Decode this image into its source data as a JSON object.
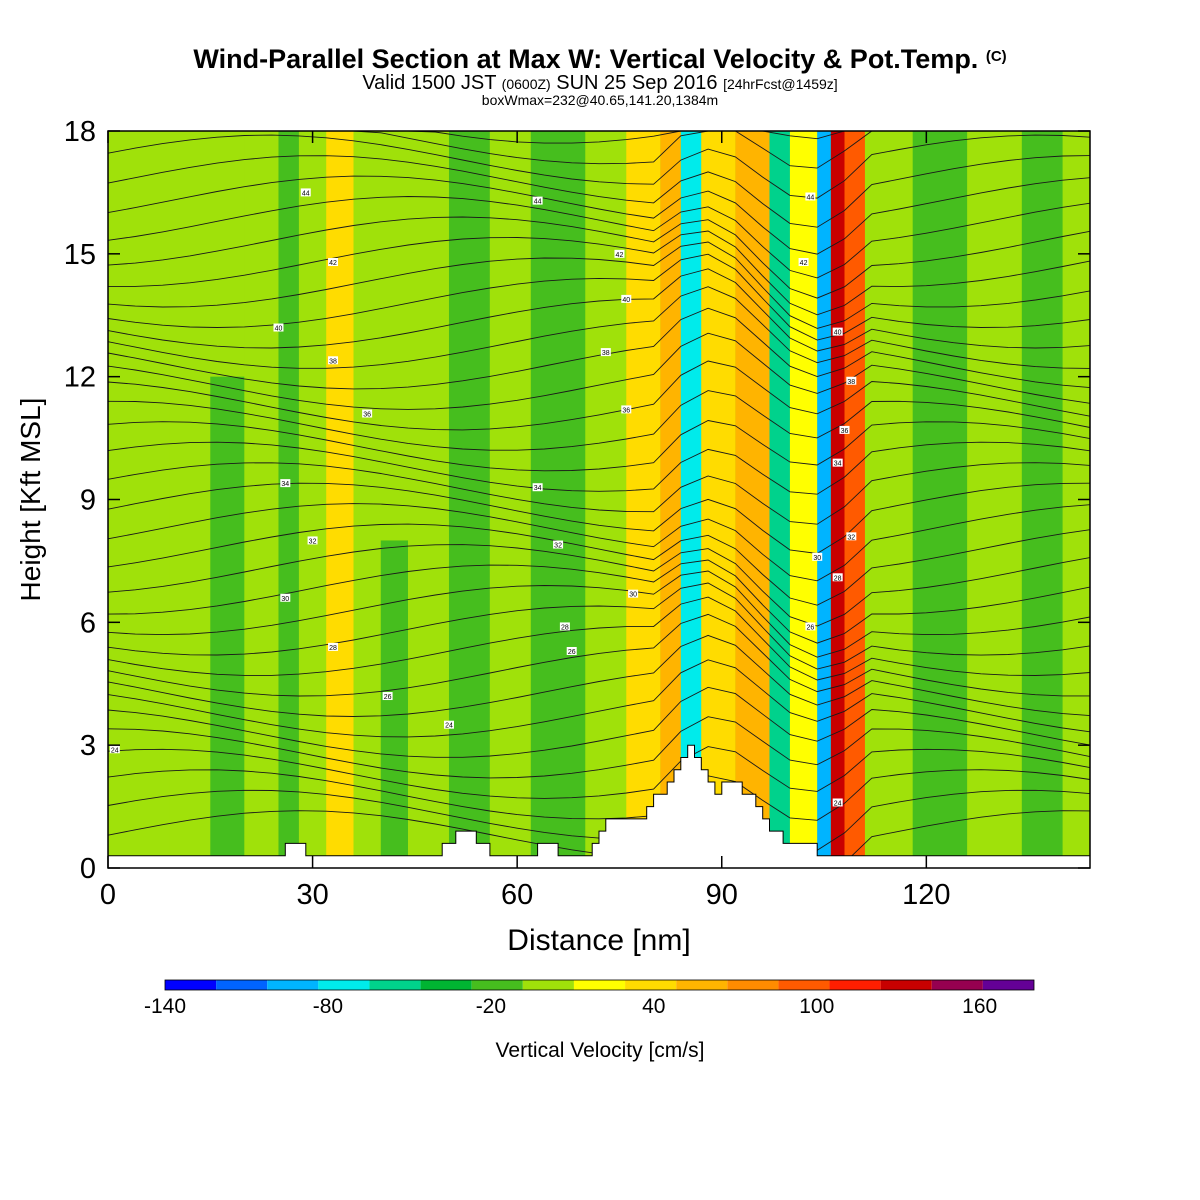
{
  "titles": {
    "main": "Wind-Parallel Section at Max W: Vertical Velocity & Pot.Temp.",
    "main_suffix": "(C)",
    "valid_a": "Valid 1500 JST",
    "valid_b": "(0600Z)",
    "valid_c": "SUN 25 Sep 2016",
    "valid_d": "[24hrFcst@1459z]",
    "box": "boxWmax=232@40.65,141.20,1384m"
  },
  "chart_data": {
    "type": "heatmap",
    "xlabel": "Distance [nm]",
    "ylabel": "Height [Kft MSL]",
    "xlim": [
      0,
      144
    ],
    "ylim": [
      0,
      18
    ],
    "x_ticks": [
      0,
      30,
      60,
      90,
      120
    ],
    "y_ticks": [
      0,
      3,
      6,
      9,
      12,
      15,
      18
    ],
    "colorbar": {
      "label": "Vertical Velocity [cm/s]",
      "tick_values": [
        -140,
        -80,
        -20,
        40,
        100,
        160
      ],
      "tick_labels": [
        "-140",
        "-80",
        "-20",
        "40",
        "100",
        "160"
      ],
      "bounds": [
        -140,
        -120,
        -100,
        -80,
        -60,
        -40,
        -20,
        0,
        20,
        40,
        60,
        80,
        100,
        120,
        140,
        160,
        180
      ],
      "colors": [
        "#0000ff",
        "#0064ff",
        "#00b4ff",
        "#00ebeb",
        "#00d28c",
        "#00b432",
        "#46be1e",
        "#a0e10a",
        "#ffff00",
        "#ffdc00",
        "#ffb400",
        "#ff8c00",
        "#ff5a00",
        "#ff1e00",
        "#c80000",
        "#960050",
        "#640096"
      ]
    },
    "fill_bands": [
      {
        "x": 0,
        "y_max": 18,
        "w": 0
      },
      {
        "x": 2,
        "y_max": 15,
        "w": 10
      },
      {
        "x": 9,
        "y_max": 18,
        "w": 0
      },
      {
        "x": 15,
        "y_max": 12,
        "w": -10
      },
      {
        "x": 20,
        "y_max": 18,
        "w": 0
      },
      {
        "x": 25,
        "y_max": 18,
        "w": -10
      },
      {
        "x": 28,
        "y_max": 18,
        "w": 0
      },
      {
        "x": 32,
        "y_max": 18,
        "w": 40
      },
      {
        "x": 36,
        "y_max": 18,
        "w": 0
      },
      {
        "x": 40,
        "y_max": 8,
        "w": -10
      },
      {
        "x": 44,
        "y_max": 16,
        "w": 10
      },
      {
        "x": 50,
        "y_max": 18,
        "w": -10
      },
      {
        "x": 56,
        "y_max": 18,
        "w": 10
      },
      {
        "x": 62,
        "y_max": 18,
        "w": -10
      },
      {
        "x": 70,
        "y_max": 18,
        "w": 10
      },
      {
        "x": 76,
        "y_max": 18,
        "w": 40
      },
      {
        "x": 81,
        "y_max": 18,
        "w": 70
      },
      {
        "x": 84,
        "y_max": 18,
        "w": -70
      },
      {
        "x": 87,
        "y_max": 18,
        "w": 50
      },
      {
        "x": 92,
        "y_max": 18,
        "w": 60
      },
      {
        "x": 97,
        "y_max": 18,
        "w": -50
      },
      {
        "x": 100,
        "y_max": 18,
        "w": 30
      },
      {
        "x": 104,
        "y_max": 18,
        "w": -100
      },
      {
        "x": 106,
        "y_max": 18,
        "w": 150
      },
      {
        "x": 108,
        "y_max": 18,
        "w": 100
      },
      {
        "x": 111,
        "y_max": 18,
        "w": 10
      },
      {
        "x": 118,
        "y_max": 18,
        "w": -10
      },
      {
        "x": 126,
        "y_max": 18,
        "w": 10
      },
      {
        "x": 134,
        "y_max": 18,
        "w": -10
      },
      {
        "x": 140,
        "y_max": 18,
        "w": 10
      }
    ],
    "theta_contour_labels": [
      {
        "x": 29,
        "y": 16.5,
        "text": "44"
      },
      {
        "x": 63,
        "y": 16.3,
        "text": "44"
      },
      {
        "x": 103,
        "y": 16.4,
        "text": "44"
      },
      {
        "x": 33,
        "y": 14.8,
        "text": "42"
      },
      {
        "x": 75,
        "y": 15.0,
        "text": "42"
      },
      {
        "x": 102,
        "y": 14.8,
        "text": "42"
      },
      {
        "x": 25,
        "y": 13.2,
        "text": "40"
      },
      {
        "x": 76,
        "y": 13.9,
        "text": "40"
      },
      {
        "x": 107,
        "y": 13.1,
        "text": "40"
      },
      {
        "x": 33,
        "y": 12.4,
        "text": "38"
      },
      {
        "x": 73,
        "y": 12.6,
        "text": "38"
      },
      {
        "x": 109,
        "y": 11.9,
        "text": "38"
      },
      {
        "x": 38,
        "y": 11.1,
        "text": "36"
      },
      {
        "x": 76,
        "y": 11.2,
        "text": "36"
      },
      {
        "x": 108,
        "y": 10.7,
        "text": "36"
      },
      {
        "x": 26,
        "y": 9.4,
        "text": "34"
      },
      {
        "x": 63,
        "y": 9.3,
        "text": "34"
      },
      {
        "x": 107,
        "y": 9.9,
        "text": "34"
      },
      {
        "x": 30,
        "y": 8.0,
        "text": "32"
      },
      {
        "x": 66,
        "y": 7.9,
        "text": "32"
      },
      {
        "x": 109,
        "y": 8.1,
        "text": "32"
      },
      {
        "x": 26,
        "y": 6.6,
        "text": "30"
      },
      {
        "x": 77,
        "y": 6.7,
        "text": "30"
      },
      {
        "x": 104,
        "y": 7.6,
        "text": "30"
      },
      {
        "x": 33,
        "y": 5.4,
        "text": "28"
      },
      {
        "x": 67,
        "y": 5.9,
        "text": "28"
      },
      {
        "x": 107,
        "y": 7.1,
        "text": "28"
      },
      {
        "x": 41,
        "y": 4.2,
        "text": "26"
      },
      {
        "x": 68,
        "y": 5.3,
        "text": "26"
      },
      {
        "x": 103,
        "y": 5.9,
        "text": "26"
      },
      {
        "x": 50,
        "y": 3.5,
        "text": "24"
      },
      {
        "x": 1,
        "y": 2.9,
        "text": "24"
      },
      {
        "x": 107,
        "y": 1.6,
        "text": "24"
      }
    ],
    "terrain": [
      [
        0,
        0.3
      ],
      [
        26,
        0.3
      ],
      [
        26,
        0.6
      ],
      [
        29,
        0.6
      ],
      [
        29,
        0.3
      ],
      [
        49,
        0.3
      ],
      [
        49,
        0.6
      ],
      [
        51,
        0.6
      ],
      [
        51,
        0.9
      ],
      [
        54,
        0.9
      ],
      [
        54,
        0.6
      ],
      [
        56,
        0.6
      ],
      [
        56,
        0.3
      ],
      [
        63,
        0.3
      ],
      [
        63,
        0.6
      ],
      [
        66,
        0.6
      ],
      [
        66,
        0.3
      ],
      [
        71,
        0.3
      ],
      [
        71,
        0.6
      ],
      [
        72,
        0.6
      ],
      [
        72,
        0.9
      ],
      [
        73,
        0.9
      ],
      [
        73,
        1.2
      ],
      [
        79,
        1.2
      ],
      [
        79,
        1.5
      ],
      [
        80,
        1.5
      ],
      [
        80,
        1.8
      ],
      [
        82,
        1.8
      ],
      [
        82,
        2.1
      ],
      [
        83,
        2.1
      ],
      [
        83,
        2.4
      ],
      [
        84,
        2.4
      ],
      [
        84,
        2.7
      ],
      [
        85,
        2.7
      ],
      [
        85,
        3.0
      ],
      [
        86,
        3.0
      ],
      [
        86,
        2.7
      ],
      [
        87,
        2.7
      ],
      [
        87,
        2.4
      ],
      [
        88,
        2.4
      ],
      [
        88,
        2.1
      ],
      [
        89,
        2.1
      ],
      [
        89,
        1.8
      ],
      [
        90,
        1.8
      ],
      [
        90,
        2.1
      ],
      [
        93,
        2.1
      ],
      [
        93,
        1.8
      ],
      [
        95,
        1.8
      ],
      [
        95,
        1.5
      ],
      [
        96,
        1.5
      ],
      [
        96,
        1.2
      ],
      [
        97,
        1.2
      ],
      [
        97,
        0.9
      ],
      [
        99,
        0.9
      ],
      [
        99,
        0.6
      ],
      [
        104,
        0.6
      ],
      [
        104,
        0.3
      ],
      [
        144,
        0.3
      ]
    ]
  }
}
